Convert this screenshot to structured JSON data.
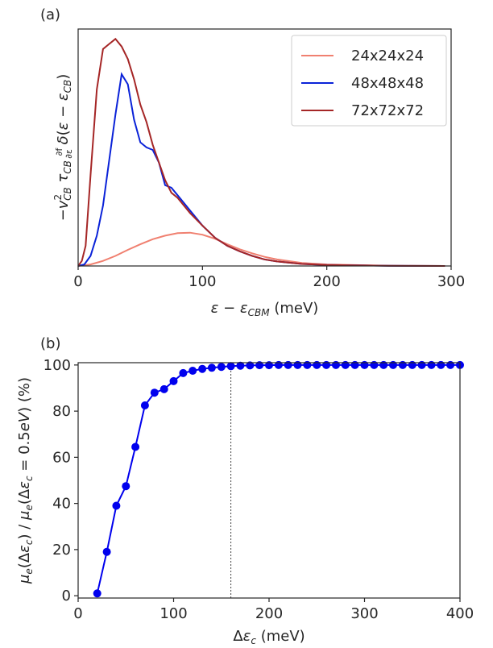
{
  "chart_data": [
    {
      "panel_label": "(a)",
      "type": "line",
      "xlabel": "ε − ε_CBM (meV)",
      "ylabel": "−v²_CB τ_CB ∂f/∂ε δ(ε − ε_CB)",
      "xlim": [
        0,
        300
      ],
      "xticks": [
        "0",
        "100",
        "200",
        "300"
      ],
      "yticks_visible": false,
      "grid": false,
      "legend_position": "top-right",
      "series": [
        {
          "name": "24x24x24",
          "color": "#f08070",
          "x": [
            0,
            10,
            20,
            30,
            40,
            50,
            60,
            70,
            80,
            90,
            100,
            110,
            120,
            130,
            140,
            150,
            160,
            180,
            200,
            250,
            295
          ],
          "y": [
            0,
            0.3,
            1.0,
            2.0,
            3.2,
            4.3,
            5.3,
            6.0,
            6.5,
            6.6,
            6.2,
            5.4,
            4.3,
            3.3,
            2.5,
            1.8,
            1.3,
            0.6,
            0.3,
            0.05,
            0
          ]
        },
        {
          "name": "48x48x48",
          "color": "#0a22d8",
          "x": [
            0,
            5,
            10,
            15,
            20,
            25,
            30,
            35,
            40,
            45,
            50,
            55,
            60,
            65,
            70,
            75,
            80,
            90,
            100,
            110,
            120,
            130,
            140,
            150,
            160,
            180,
            200,
            250,
            295
          ],
          "y": [
            0,
            0.3,
            2.0,
            6.0,
            12.0,
            21.0,
            30.0,
            38.0,
            36.0,
            29.0,
            24.5,
            23.5,
            23.0,
            20.5,
            16.0,
            15.5,
            14.0,
            11.0,
            8.0,
            5.6,
            4.0,
            2.9,
            2.0,
            1.3,
            0.9,
            0.4,
            0.2,
            0.03,
            0
          ]
        },
        {
          "name": "72x72x72",
          "color": "#a52626",
          "x": [
            0,
            3,
            6,
            10,
            15,
            20,
            25,
            30,
            35,
            40,
            45,
            50,
            55,
            60,
            65,
            70,
            75,
            80,
            90,
            100,
            110,
            120,
            130,
            140,
            150,
            160,
            180,
            200,
            250,
            295
          ],
          "y": [
            0,
            1.0,
            4.0,
            18.0,
            35.0,
            43.0,
            44.0,
            45.0,
            43.5,
            41.0,
            37.0,
            32.0,
            28.5,
            24.0,
            20.5,
            17.0,
            14.5,
            13.5,
            10.5,
            8.0,
            5.6,
            4.0,
            2.9,
            2.0,
            1.3,
            0.9,
            0.4,
            0.2,
            0.03,
            0
          ]
        }
      ],
      "ylim": [
        0,
        46
      ]
    },
    {
      "panel_label": "(b)",
      "type": "line",
      "xlabel": "Δε_c (meV)",
      "ylabel": "μ_e(Δε_c) / μ_e(Δε_c = 0.5eV) (%)",
      "xlim": [
        0,
        400
      ],
      "ylim": [
        -1,
        101
      ],
      "xticks": [
        "0",
        "100",
        "200",
        "300",
        "400"
      ],
      "yticks": [
        "0",
        "20",
        "40",
        "60",
        "80",
        "100"
      ],
      "grid": false,
      "vertical_reference_line_x": 160,
      "series": [
        {
          "name": "",
          "color": "#0000ee",
          "marker": "circle",
          "x": [
            20,
            30,
            40,
            50,
            60,
            70,
            80,
            90,
            100,
            110,
            120,
            130,
            140,
            150,
            160,
            170,
            180,
            190,
            200,
            210,
            220,
            230,
            240,
            250,
            260,
            270,
            280,
            290,
            300,
            310,
            320,
            330,
            340,
            350,
            360,
            370,
            380,
            390,
            400
          ],
          "y": [
            1,
            19,
            39,
            47.5,
            64.5,
            82.5,
            88,
            89.5,
            93,
            96.5,
            97.5,
            98.3,
            98.8,
            99.2,
            99.5,
            99.7,
            99.8,
            99.9,
            99.9,
            100,
            100,
            100,
            100,
            100,
            100,
            100,
            100,
            100,
            100,
            100,
            100,
            100,
            100,
            100,
            100,
            100,
            100,
            100,
            100
          ]
        }
      ]
    }
  ]
}
